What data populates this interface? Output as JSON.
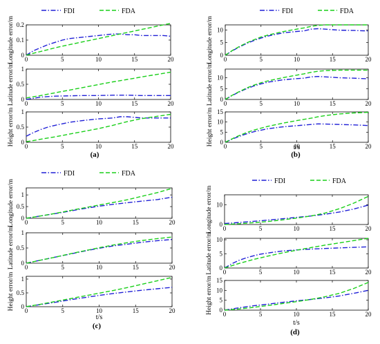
{
  "chart_data": [
    {
      "label": "(a)",
      "type": "line",
      "xlabel": "t/s",
      "legend": {
        "placement": "top",
        "entries": [
          "FDI",
          "FDA"
        ]
      },
      "subplots": [
        {
          "ylabel": "Longitude error/m",
          "ylim": [
            0,
            0.2
          ],
          "yticks": [
            "0",
            "0.1",
            "0.2"
          ],
          "xticks": [
            "0",
            "5",
            "10",
            "15",
            "20"
          ],
          "x": [
            0,
            1,
            2,
            3,
            4,
            5,
            6,
            7,
            8,
            9,
            10,
            11,
            12,
            13,
            14,
            15,
            16,
            17,
            18,
            19,
            20
          ],
          "series": [
            {
              "name": "FDI",
              "values": [
                0,
                0.03,
                0.05,
                0.07,
                0.085,
                0.1,
                0.11,
                0.115,
                0.12,
                0.125,
                0.13,
                0.135,
                0.14,
                0.14,
                0.135,
                0.135,
                0.13,
                0.13,
                0.13,
                0.13,
                0.125
              ]
            },
            {
              "name": "FDA",
              "values": [
                0,
                0.013,
                0.025,
                0.037,
                0.049,
                0.06,
                0.07,
                0.08,
                0.09,
                0.1,
                0.11,
                0.12,
                0.13,
                0.14,
                0.15,
                0.16,
                0.17,
                0.18,
                0.19,
                0.2,
                0.21
              ]
            }
          ]
        },
        {
          "ylabel": "Latitude error/m",
          "ylim": [
            0,
            1
          ],
          "yticks": [
            "0",
            "0.5",
            "1"
          ],
          "xticks": [
            "0",
            "5",
            "10",
            "15",
            "20"
          ],
          "x": [
            0,
            2,
            4,
            6,
            8,
            10,
            12,
            14,
            16,
            18,
            20
          ],
          "series": [
            {
              "name": "FDI",
              "values": [
                0,
                0.08,
                0.11,
                0.12,
                0.13,
                0.13,
                0.14,
                0.14,
                0.13,
                0.13,
                0.13
              ]
            },
            {
              "name": "FDA",
              "values": [
                0.05,
                0.13,
                0.22,
                0.31,
                0.4,
                0.49,
                0.58,
                0.66,
                0.74,
                0.82,
                0.9
              ]
            }
          ]
        },
        {
          "ylabel": "Height error/m",
          "ylim": [
            0,
            1
          ],
          "yticks": [
            "0",
            "0.5",
            "1"
          ],
          "xticks": [
            "0",
            "5",
            "10",
            "15",
            "20"
          ],
          "x": [
            0,
            1,
            2,
            3,
            4,
            6,
            8,
            10,
            12,
            13,
            14,
            15,
            16,
            18,
            20
          ],
          "series": [
            {
              "name": "FDI",
              "values": [
                0.2,
                0.32,
                0.42,
                0.5,
                0.56,
                0.66,
                0.72,
                0.77,
                0.8,
                0.84,
                0.84,
                0.82,
                0.8,
                0.8,
                0.8
              ]
            },
            {
              "name": "FDA",
              "values": [
                0.02,
                0.06,
                0.1,
                0.14,
                0.18,
                0.27,
                0.36,
                0.45,
                0.56,
                0.62,
                0.68,
                0.73,
                0.78,
                0.85,
                0.92
              ]
            }
          ]
        }
      ]
    },
    {
      "label": "(b)",
      "type": "line",
      "xlabel": "t/s",
      "legend": {
        "placement": "top",
        "entries": [
          "FDI",
          "FDA"
        ]
      },
      "subplots": [
        {
          "ylabel": "Longitude error/m",
          "ylim": [
            0,
            12
          ],
          "yticks": [
            "0",
            "5",
            "10"
          ],
          "xticks": [
            "0",
            "5",
            "10",
            "15",
            "20"
          ],
          "x": [
            0,
            1,
            2,
            3,
            4,
            5,
            6,
            8,
            10,
            11,
            12,
            13,
            14,
            15,
            16,
            18,
            20
          ],
          "series": [
            {
              "name": "FDI",
              "values": [
                0,
                1.8,
                3.3,
                4.7,
                5.8,
                6.8,
                7.6,
                8.8,
                9.4,
                9.6,
                10.3,
                10.5,
                10.3,
                10.1,
                9.9,
                9.8,
                9.6
              ]
            },
            {
              "name": "FDA",
              "values": [
                0,
                1.9,
                3.5,
                4.9,
                6.1,
                7.2,
                8.0,
                9.3,
                10.3,
                10.8,
                11.4,
                11.8,
                12.0,
                12.0,
                12.0,
                12.0,
                12.0
              ]
            }
          ]
        },
        {
          "ylabel": "Latitude error/m",
          "ylim": [
            0,
            14
          ],
          "yticks": [
            "0",
            "5",
            "10"
          ],
          "xticks": [
            "0",
            "5",
            "10",
            "15",
            "20"
          ],
          "x": [
            0,
            1,
            2,
            3,
            4,
            5,
            6,
            8,
            10,
            11,
            12,
            13,
            14,
            15,
            16,
            18,
            20
          ],
          "series": [
            {
              "name": "FDI",
              "values": [
                0,
                1.9,
                3.5,
                5.0,
                6.2,
                7.2,
                8.0,
                9.0,
                9.6,
                9.8,
                10.4,
                10.6,
                10.4,
                10.2,
                10.0,
                9.8,
                9.5
              ]
            },
            {
              "name": "FDA",
              "values": [
                0,
                2.0,
                3.7,
                5.3,
                6.6,
                7.7,
                8.6,
                10.0,
                11.2,
                11.8,
                12.5,
                13.0,
                13.3,
                13.4,
                13.5,
                13.5,
                13.5
              ]
            }
          ]
        },
        {
          "ylabel": "Height error/m",
          "ylim": [
            0,
            15
          ],
          "yticks": [
            "0",
            "5",
            "10",
            "15"
          ],
          "xticks": [
            "0",
            "5",
            "10",
            "15",
            "20"
          ],
          "x": [
            0,
            1,
            2,
            3,
            4,
            5,
            6,
            8,
            10,
            12,
            13,
            14,
            16,
            18,
            20
          ],
          "series": [
            {
              "name": "FDI",
              "values": [
                0,
                1.6,
                3.0,
                4.2,
                5.2,
                6.0,
                6.7,
                7.6,
                8.2,
                8.8,
                9.1,
                9.0,
                8.8,
                8.6,
                8.3
              ]
            },
            {
              "name": "FDA",
              "values": [
                0,
                1.8,
                3.4,
                4.8,
                6.0,
                7.0,
                7.9,
                9.4,
                10.7,
                11.9,
                12.6,
                13.2,
                14.0,
                14.5,
                14.8
              ]
            }
          ]
        }
      ]
    },
    {
      "label": "(c)",
      "type": "line",
      "xlabel": "t/s",
      "legend": {
        "placement": "top",
        "entries": [
          "FDI",
          "FDA"
        ]
      },
      "subplots": [
        {
          "ylabel": "Longitude error/m",
          "ylim": [
            0,
            1.3
          ],
          "yticks": [
            "0",
            "0.5",
            "1"
          ],
          "xticks": [
            "0",
            "5",
            "10",
            "15",
            "20"
          ],
          "x": [
            0,
            2,
            4,
            6,
            8,
            10,
            12,
            14,
            16,
            18,
            20
          ],
          "series": [
            {
              "name": "FDI",
              "values": [
                0,
                0.1,
                0.2,
                0.31,
                0.42,
                0.52,
                0.6,
                0.67,
                0.74,
                0.8,
                0.9
              ]
            },
            {
              "name": "FDA",
              "values": [
                0,
                0.1,
                0.21,
                0.33,
                0.45,
                0.57,
                0.68,
                0.8,
                0.95,
                1.1,
                1.28
              ]
            }
          ]
        },
        {
          "ylabel": "Latitude error/m",
          "ylim": [
            0,
            1
          ],
          "yticks": [
            "0",
            "0.5",
            "1"
          ],
          "xticks": [
            "0",
            "5",
            "10",
            "15",
            "20"
          ],
          "x": [
            0,
            2,
            4,
            6,
            8,
            10,
            12,
            14,
            16,
            18,
            20
          ],
          "series": [
            {
              "name": "FDI",
              "values": [
                0,
                0.1,
                0.2,
                0.3,
                0.4,
                0.49,
                0.57,
                0.63,
                0.69,
                0.74,
                0.78
              ]
            },
            {
              "name": "FDA",
              "values": [
                0,
                0.1,
                0.2,
                0.31,
                0.41,
                0.51,
                0.6,
                0.68,
                0.75,
                0.81,
                0.86
              ]
            }
          ]
        },
        {
          "ylabel": "Height error/m",
          "ylim": [
            0,
            1.1
          ],
          "yticks": [
            "0",
            "0.5",
            "1"
          ],
          "xticks": [
            "0",
            "5",
            "10",
            "15",
            "20"
          ],
          "x": [
            0,
            2,
            4,
            6,
            8,
            10,
            12,
            14,
            16,
            18,
            20
          ],
          "series": [
            {
              "name": "FDI",
              "values": [
                0,
                0.08,
                0.16,
                0.25,
                0.33,
                0.41,
                0.48,
                0.54,
                0.6,
                0.65,
                0.7
              ]
            },
            {
              "name": "FDA",
              "values": [
                0,
                0.09,
                0.19,
                0.29,
                0.39,
                0.49,
                0.59,
                0.7,
                0.82,
                0.94,
                1.06
              ]
            }
          ]
        }
      ]
    },
    {
      "label": "(d)",
      "type": "line",
      "xlabel": "t/s",
      "legend": {
        "placement": "top",
        "entries": [
          "FDI",
          "FDA"
        ]
      },
      "subplots": [
        {
          "ylabel": "Longitude error/m",
          "ylim": [
            0,
            15
          ],
          "yticks": [
            "0",
            "10"
          ],
          "xticks": [
            "0",
            "5",
            "10",
            "15",
            "20"
          ],
          "x": [
            0,
            2,
            4,
            6,
            8,
            10,
            12,
            14,
            16,
            18,
            20
          ],
          "series": [
            {
              "name": "FDI",
              "values": [
                0.5,
                1.0,
                1.6,
                2.2,
                2.9,
                3.6,
                4.3,
                5.2,
                6.3,
                7.8,
                9.8
              ]
            },
            {
              "name": "FDA",
              "values": [
                0,
                0.4,
                0.9,
                1.5,
                2.3,
                3.2,
                4.3,
                5.8,
                8.0,
                10.8,
                14.2
              ]
            }
          ]
        },
        {
          "ylabel": "Latitude error/m",
          "ylim": [
            0,
            10.5
          ],
          "yticks": [
            "0",
            "5",
            "10"
          ],
          "xticks": [
            "0",
            "5",
            "10",
            "15",
            "20"
          ],
          "x": [
            0,
            1,
            2,
            3,
            4,
            5,
            6,
            8,
            10,
            12,
            14,
            16,
            18,
            20
          ],
          "series": [
            {
              "name": "FDI",
              "values": [
                0,
                1.5,
                2.7,
                3.6,
                4.3,
                4.9,
                5.3,
                6.0,
                6.4,
                6.7,
                6.9,
                7.1,
                7.3,
                7.5
              ]
            },
            {
              "name": "FDA",
              "values": [
                0,
                0.8,
                1.6,
                2.3,
                3.0,
                3.6,
                4.2,
                5.3,
                6.3,
                7.2,
                8.1,
                8.9,
                9.7,
                10.5
              ]
            }
          ]
        },
        {
          "ylabel": "Height error/m",
          "ylim": [
            0,
            15
          ],
          "yticks": [
            "0",
            "5",
            "10",
            "15"
          ],
          "xticks": [
            "0",
            "5",
            "10",
            "15",
            "20"
          ],
          "x": [
            0,
            2,
            4,
            6,
            8,
            10,
            12,
            14,
            16,
            18,
            20
          ],
          "series": [
            {
              "name": "FDI",
              "values": [
                0,
                1.2,
                2.2,
                3.0,
                3.9,
                4.7,
                5.4,
                6.2,
                7.2,
                8.5,
                10.0
              ]
            },
            {
              "name": "FDA",
              "values": [
                0,
                0.6,
                1.4,
                2.3,
                3.3,
                4.3,
                5.4,
                6.8,
                8.5,
                11.0,
                14.0
              ]
            }
          ]
        }
      ]
    }
  ],
  "colors": {
    "FDI": "#1f1fd6",
    "FDA": "#19cf19",
    "axis": "#000000",
    "background": "#ffffff"
  }
}
